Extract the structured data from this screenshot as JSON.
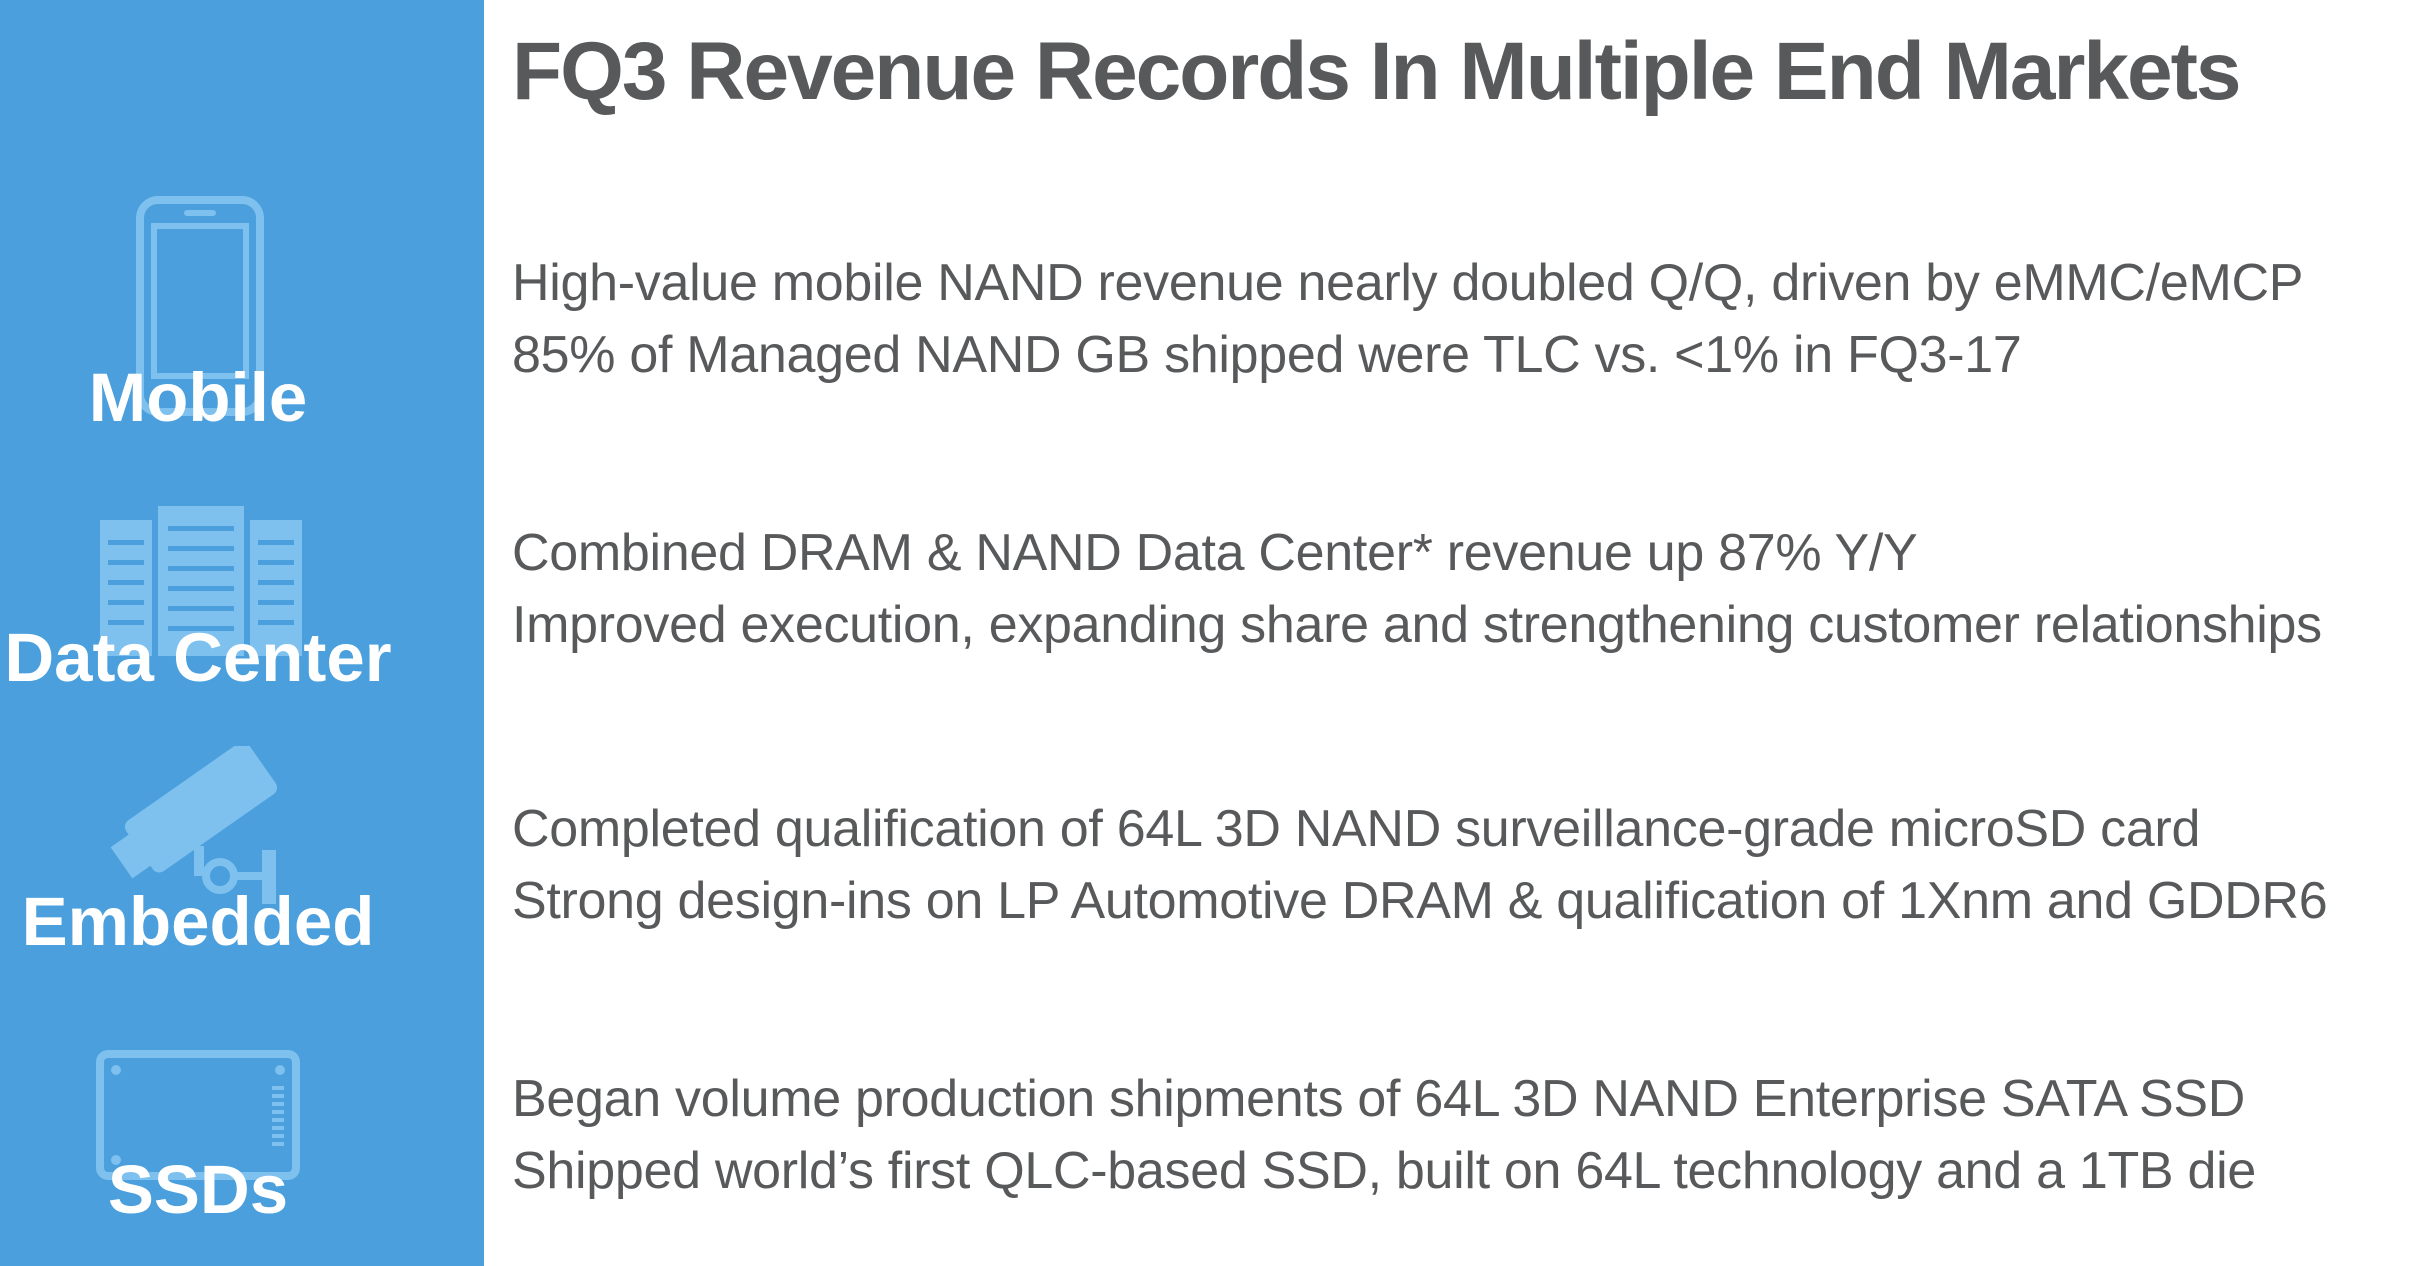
{
  "title": "FQ3 Revenue Records In Multiple End Markets",
  "colors": {
    "sidebar": "#4a9fdc",
    "icon": "#7ec0ee",
    "text": "#58595b",
    "label": "#ffffff"
  },
  "categories": [
    {
      "label": "Mobile",
      "icon": "smartphone-icon",
      "bullets": [
        "High-value mobile NAND revenue nearly doubled Q/Q, driven by eMMC/eMCP",
        "85% of Managed NAND GB shipped were TLC vs. <1% in FQ3-17"
      ]
    },
    {
      "label": "Data Center",
      "icon": "server-rack-icon",
      "bullets": [
        "Combined DRAM & NAND Data Center* revenue up 87% Y/Y",
        "Improved execution, expanding share and strengthening customer relationships"
      ]
    },
    {
      "label": "Embedded",
      "icon": "security-camera-icon",
      "bullets": [
        "Completed qualification of 64L 3D NAND surveillance-grade microSD card",
        "Strong design-ins on LP Automotive DRAM & qualification of 1Xnm and GDDR6"
      ]
    },
    {
      "label": "SSDs",
      "icon": "ssd-drive-icon",
      "bullets": [
        "Began volume production shipments of 64L 3D NAND Enterprise SATA SSD",
        "Shipped world’s first QLC-based SSD, built on 64L technology and a 1TB die"
      ]
    }
  ]
}
